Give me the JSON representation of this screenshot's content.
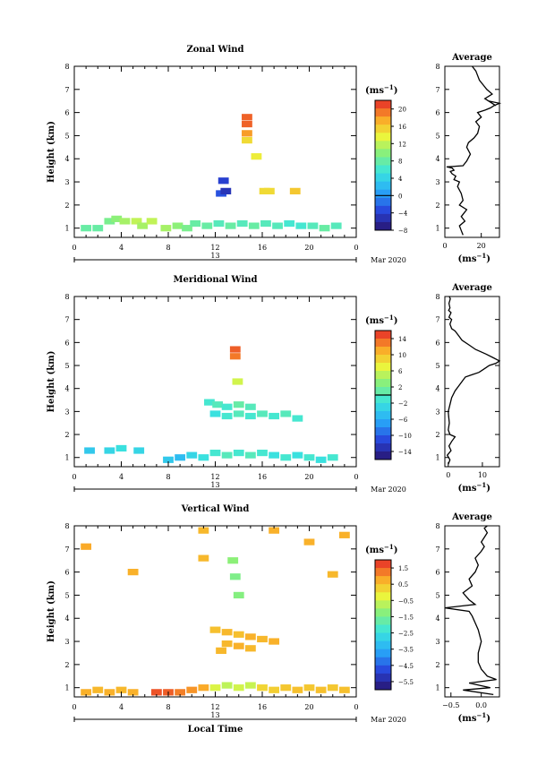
{
  "chart_data": [
    {
      "type": "heatmap",
      "title": "Zonal Wind",
      "xlabel": "",
      "ylabel": "Height (km)",
      "xlim": [
        0,
        24
      ],
      "ylim": [
        0.6,
        8
      ],
      "xticks": [
        "0",
        "4",
        "8",
        "12",
        "16",
        "20",
        "0"
      ],
      "yticks": [
        "1",
        "2",
        "3",
        "4",
        "5",
        "6",
        "7",
        "8"
      ],
      "date_label": "13",
      "month_label": "Mar 2020",
      "colorbar": {
        "unit": "(ms",
        "unit_sup": "−1",
        "unit_close": ")",
        "range": [
          -8,
          22
        ],
        "ticks": [
          "20",
          "16",
          "12",
          "8",
          "4",
          "0",
          "−4",
          "−8"
        ],
        "tick_values": [
          20,
          16,
          12,
          8,
          4,
          0,
          -4,
          -8
        ],
        "zero_line": 0
      },
      "cells": [
        [
          14.7,
          5.8,
          20
        ],
        [
          14.7,
          5.5,
          20
        ],
        [
          14.7,
          5.1,
          18
        ],
        [
          14.7,
          4.8,
          15
        ],
        [
          12.7,
          3.05,
          -4
        ],
        [
          12.5,
          2.5,
          -3
        ],
        [
          12.9,
          2.6,
          -5
        ],
        [
          15.5,
          4.1,
          14
        ],
        [
          16.2,
          2.6,
          15
        ],
        [
          16.6,
          2.6,
          15
        ],
        [
          18.8,
          2.6,
          16
        ],
        [
          1,
          1.0,
          8
        ],
        [
          2,
          1.0,
          8
        ],
        [
          3,
          1.3,
          9
        ],
        [
          3.6,
          1.4,
          10
        ],
        [
          4.3,
          1.3,
          11
        ],
        [
          5.3,
          1.3,
          12
        ],
        [
          5.8,
          1.1,
          11
        ],
        [
          6.6,
          1.3,
          12
        ],
        [
          7.8,
          1.0,
          11
        ],
        [
          8.8,
          1.1,
          10
        ],
        [
          9.6,
          1.0,
          9
        ],
        [
          10.3,
          1.2,
          8
        ],
        [
          11.3,
          1.1,
          8
        ],
        [
          12.3,
          1.2,
          7
        ],
        [
          13.3,
          1.1,
          8
        ],
        [
          14.3,
          1.2,
          7
        ],
        [
          15.3,
          1.1,
          8
        ],
        [
          16.3,
          1.2,
          7
        ],
        [
          17.3,
          1.1,
          7
        ],
        [
          18.3,
          1.2,
          6
        ],
        [
          19.3,
          1.1,
          6
        ],
        [
          20.3,
          1.1,
          7
        ],
        [
          21.3,
          1.0,
          8
        ],
        [
          22.3,
          1.1,
          7
        ]
      ],
      "profile": {
        "title": "Average",
        "xlabel": "(ms",
        "xlabel_sup": "−1",
        "xlabel_close": ")",
        "xlim": [
          0,
          30
        ],
        "xticks": [
          "0",
          "20"
        ],
        "xtick_values": [
          0,
          20
        ],
        "ylim": [
          0.6,
          8
        ],
        "x": [
          10,
          9,
          8,
          11,
          9,
          12,
          8,
          10,
          9,
          7,
          8,
          5,
          6,
          4,
          3,
          5,
          4,
          1,
          10,
          12,
          14,
          12,
          13,
          16,
          18,
          19,
          17,
          20,
          18,
          22,
          25,
          27,
          30,
          24,
          28,
          22,
          26,
          23,
          21,
          19,
          18,
          17,
          15
        ],
        "y": [
          0.7,
          0.9,
          1.1,
          1.3,
          1.5,
          1.8,
          2.0,
          2.2,
          2.5,
          2.8,
          3.0,
          3.1,
          3.25,
          3.35,
          3.45,
          3.5,
          3.6,
          3.65,
          3.7,
          3.9,
          4.2,
          4.5,
          4.7,
          4.9,
          5.1,
          5.4,
          5.6,
          5.8,
          6.0,
          6.1,
          6.2,
          6.3,
          6.4,
          6.5,
          6.3,
          6.6,
          6.8,
          7.0,
          7.2,
          7.4,
          7.6,
          7.8,
          8.0
        ]
      }
    },
    {
      "type": "heatmap",
      "title": "Meridional Wind",
      "xlabel": "",
      "ylabel": "Height (km)",
      "xlim": [
        0,
        24
      ],
      "ylim": [
        0.6,
        8
      ],
      "xticks": [
        "0",
        "4",
        "8",
        "12",
        "16",
        "20",
        "0"
      ],
      "yticks": [
        "1",
        "2",
        "3",
        "4",
        "5",
        "6",
        "7",
        "8"
      ],
      "date_label": "13",
      "month_label": "Mar 2020",
      "colorbar": {
        "unit": "(ms",
        "unit_sup": "−1",
        "unit_close": ")",
        "range": [
          -16,
          16
        ],
        "ticks": [
          "14",
          "10",
          "6",
          "2",
          "−2",
          "−6",
          "−10",
          "−14"
        ],
        "tick_values": [
          14,
          10,
          6,
          2,
          -2,
          -6,
          -10,
          -14
        ],
        "zero_line": 0
      },
      "cells": [
        [
          13.7,
          5.7,
          14
        ],
        [
          13.7,
          5.4,
          13
        ],
        [
          13.9,
          4.3,
          6
        ],
        [
          11.5,
          3.4,
          -1
        ],
        [
          12.2,
          3.3,
          0
        ],
        [
          13,
          3.2,
          -1
        ],
        [
          14,
          3.3,
          1
        ],
        [
          15,
          3.2,
          0
        ],
        [
          12,
          2.9,
          -2
        ],
        [
          13,
          2.8,
          -1
        ],
        [
          14,
          2.9,
          0
        ],
        [
          15,
          2.8,
          -1
        ],
        [
          16,
          2.9,
          0
        ],
        [
          17,
          2.8,
          -1
        ],
        [
          18,
          2.9,
          0
        ],
        [
          19,
          2.7,
          -1
        ],
        [
          1.3,
          1.3,
          -4
        ],
        [
          3,
          1.3,
          -3
        ],
        [
          4,
          1.4,
          -2
        ],
        [
          5.5,
          1.3,
          -3
        ],
        [
          8,
          0.9,
          -4
        ],
        [
          9,
          1.0,
          -5
        ],
        [
          10,
          1.1,
          -3
        ],
        [
          11,
          1.0,
          -2
        ],
        [
          12,
          1.2,
          -1
        ],
        [
          13,
          1.1,
          0
        ],
        [
          14,
          1.2,
          -1
        ],
        [
          15,
          1.1,
          0
        ],
        [
          16,
          1.2,
          -1
        ],
        [
          17,
          1.1,
          -2
        ],
        [
          18,
          1.0,
          -1
        ],
        [
          19,
          1.1,
          -2
        ],
        [
          20,
          1.0,
          -1
        ],
        [
          21,
          0.9,
          -2
        ],
        [
          22,
          1.0,
          -1
        ]
      ],
      "profile": {
        "title": "Average",
        "xlabel": "(ms",
        "xlabel_sup": "−1",
        "xlabel_close": ")",
        "xlim": [
          -1,
          15
        ],
        "xticks": [
          "0",
          "10"
        ],
        "xtick_values": [
          0,
          10
        ],
        "ylim": [
          0.6,
          8
        ],
        "x": [
          0,
          0.5,
          -0.3,
          0.8,
          0.2,
          1,
          2,
          0.5,
          0,
          0.3,
          0.1,
          0,
          0.5,
          1,
          2,
          3,
          4,
          5,
          7,
          9,
          10,
          11,
          12,
          14,
          15,
          13,
          11,
          8,
          6,
          4,
          3,
          2,
          1,
          0.5,
          1,
          0.2,
          0.8,
          0.1,
          0.5,
          0.2,
          0.6,
          0.3
        ],
        "y": [
          0.7,
          0.9,
          1.1,
          1.3,
          1.5,
          1.7,
          1.9,
          2.0,
          2.2,
          2.5,
          2.8,
          3.0,
          3.3,
          3.6,
          3.9,
          4.1,
          4.3,
          4.5,
          4.6,
          4.7,
          4.8,
          4.9,
          5.0,
          5.1,
          5.2,
          5.35,
          5.5,
          5.7,
          5.9,
          6.1,
          6.3,
          6.5,
          6.6,
          6.8,
          7.0,
          7.1,
          7.3,
          7.4,
          7.5,
          7.7,
          7.9,
          8.0
        ]
      }
    },
    {
      "type": "heatmap",
      "title": "Vertical Wind",
      "xlabel": "Local Time",
      "ylabel": "Height (km)",
      "xlim": [
        0,
        24
      ],
      "ylim": [
        0.6,
        8
      ],
      "xticks": [
        "0",
        "4",
        "8",
        "12",
        "16",
        "20",
        "0"
      ],
      "yticks": [
        "1",
        "2",
        "3",
        "4",
        "5",
        "6",
        "7",
        "8"
      ],
      "date_label": "13",
      "month_label": "Mar 2020",
      "colorbar": {
        "unit": "(ms",
        "unit_sup": "−1",
        "unit_close": ")",
        "range": [
          -6,
          2
        ],
        "ticks": [
          "1.5",
          "0.5",
          "−0.5",
          "−1.5",
          "−2.5",
          "−3.5",
          "−4.5",
          "−5.5"
        ],
        "tick_values": [
          1.5,
          0.5,
          -0.5,
          -1.5,
          -2.5,
          -3.5,
          -4.5,
          -5.5
        ],
        "zero_line": null
      },
      "cells": [
        [
          11,
          7.8,
          0.6
        ],
        [
          17,
          7.8,
          0.7
        ],
        [
          23,
          7.6,
          0.7
        ],
        [
          1,
          7.1,
          0.8
        ],
        [
          20,
          7.3,
          0.7
        ],
        [
          13.5,
          6.5,
          -1.2
        ],
        [
          13.7,
          5.8,
          -1.4
        ],
        [
          14,
          5.0,
          -1.3
        ],
        [
          5,
          6.0,
          0.7
        ],
        [
          11,
          6.6,
          0.6
        ],
        [
          22,
          5.9,
          0.6
        ],
        [
          12,
          3.5,
          0.5
        ],
        [
          13,
          3.4,
          0.6
        ],
        [
          14,
          3.3,
          0.5
        ],
        [
          15,
          3.2,
          0.7
        ],
        [
          16,
          3.1,
          0.6
        ],
        [
          17,
          3.0,
          0.7
        ],
        [
          13,
          2.9,
          0.6
        ],
        [
          14,
          2.8,
          0.7
        ],
        [
          15,
          2.7,
          0.6
        ],
        [
          12.5,
          2.6,
          0.6
        ],
        [
          1,
          0.8,
          0.7
        ],
        [
          2,
          0.9,
          0.6
        ],
        [
          3,
          0.8,
          0.7
        ],
        [
          4,
          0.9,
          0.6
        ],
        [
          5,
          0.8,
          0.7
        ],
        [
          7,
          0.8,
          1.6
        ],
        [
          8,
          0.8,
          1.5
        ],
        [
          9,
          0.8,
          1.2
        ],
        [
          10,
          0.9,
          1.0
        ],
        [
          11,
          1.0,
          0.8
        ],
        [
          12,
          1.0,
          -0.4
        ],
        [
          13,
          1.1,
          -0.7
        ],
        [
          14,
          1.0,
          -0.5
        ],
        [
          15,
          1.1,
          -0.6
        ],
        [
          16,
          1.0,
          0.2
        ],
        [
          17,
          0.9,
          0.3
        ],
        [
          18,
          1.0,
          0.4
        ],
        [
          19,
          0.9,
          0.5
        ],
        [
          20,
          1.0,
          0.4
        ],
        [
          21,
          0.9,
          0.5
        ],
        [
          22,
          1.0,
          0.4
        ],
        [
          23,
          0.9,
          0.5
        ]
      ],
      "profile": {
        "title": "Average",
        "xlabel": "(ms",
        "xlabel_sup": "−1",
        "xlabel_close": ")",
        "xlim": [
          -0.6,
          0.3
        ],
        "xticks": [
          "−0.5",
          "0.0"
        ],
        "xtick_values": [
          -0.5,
          0.0
        ],
        "ylim": [
          0.6,
          8
        ],
        "x": [
          0.2,
          -0.3,
          0.15,
          -0.2,
          0.25,
          0.1,
          0.0,
          -0.05,
          -0.05,
          0.0,
          -0.05,
          -0.1,
          -0.15,
          -0.2,
          -0.6,
          -0.1,
          -0.2,
          -0.3,
          -0.15,
          -0.2,
          -0.1,
          -0.05,
          -0.1,
          0.0,
          0.05,
          0.0,
          0.05,
          0.1,
          0.05,
          0.1
        ],
        "y": [
          0.7,
          0.9,
          1.0,
          1.2,
          1.35,
          1.5,
          1.8,
          2.1,
          2.5,
          3.0,
          3.5,
          3.8,
          4.1,
          4.3,
          4.45,
          4.6,
          4.8,
          5.1,
          5.4,
          5.7,
          6.0,
          6.3,
          6.6,
          6.9,
          7.1,
          7.3,
          7.5,
          7.7,
          7.9,
          8.0
        ]
      }
    }
  ]
}
